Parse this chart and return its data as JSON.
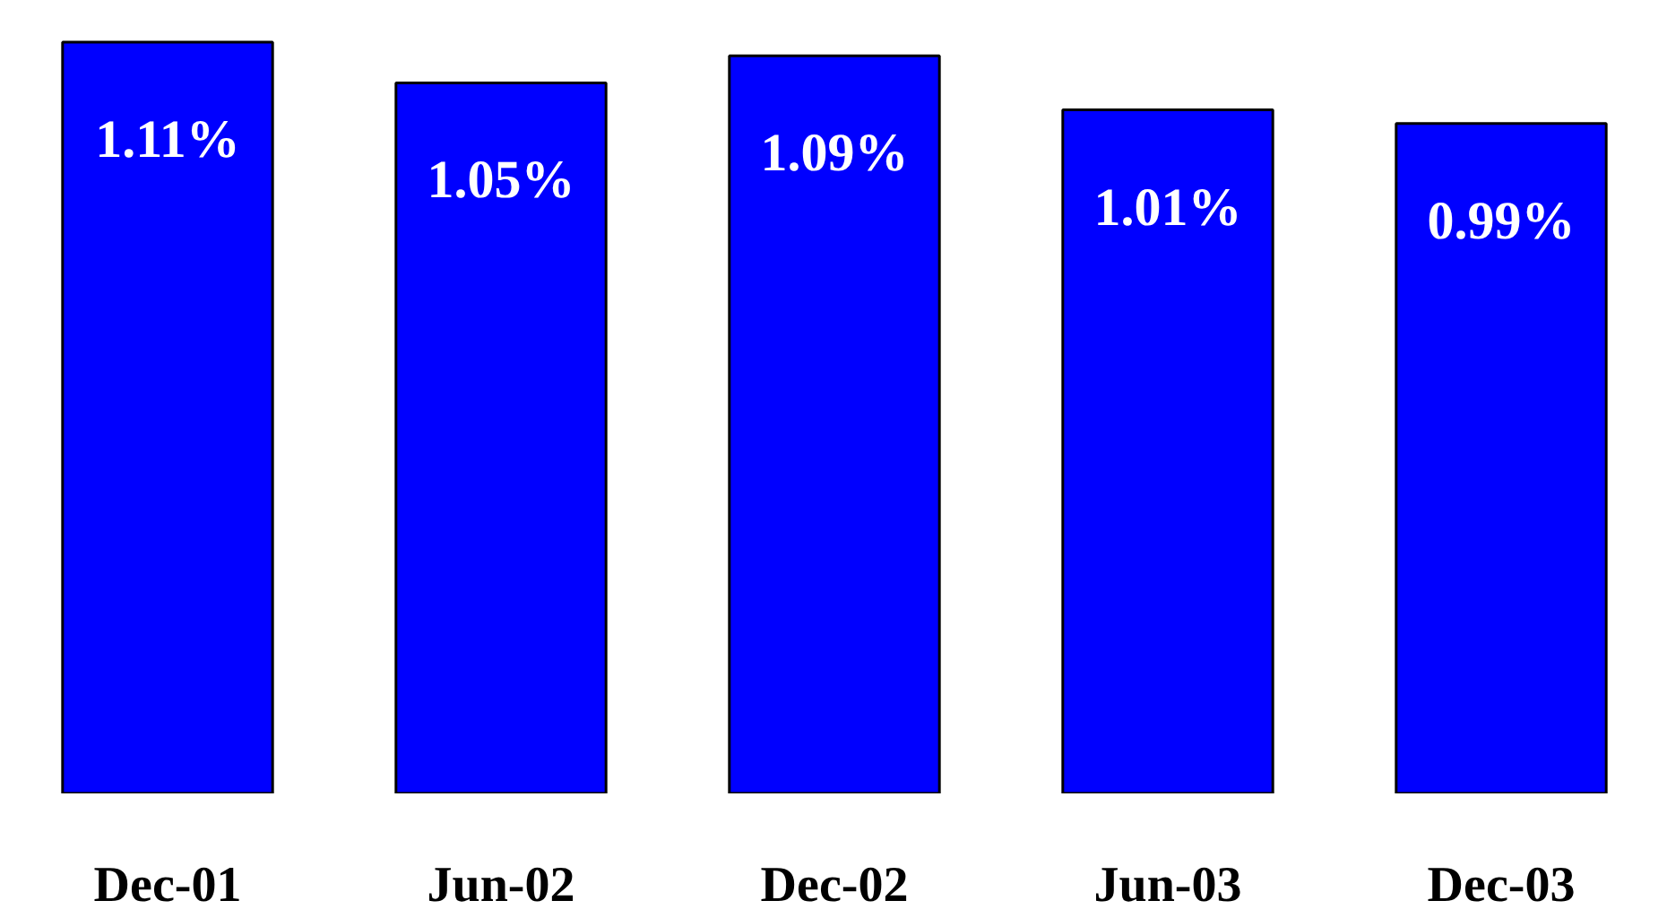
{
  "chart_data": {
    "type": "bar",
    "categories": [
      "Dec-01",
      "Jun-02",
      "Dec-02",
      "Jun-03",
      "Dec-03"
    ],
    "values": [
      1.11,
      1.05,
      1.09,
      1.01,
      0.99
    ],
    "value_labels": [
      "1.11%",
      "1.05%",
      "1.09%",
      "1.01%",
      "0.99%"
    ],
    "color": "#0000ff"
  }
}
